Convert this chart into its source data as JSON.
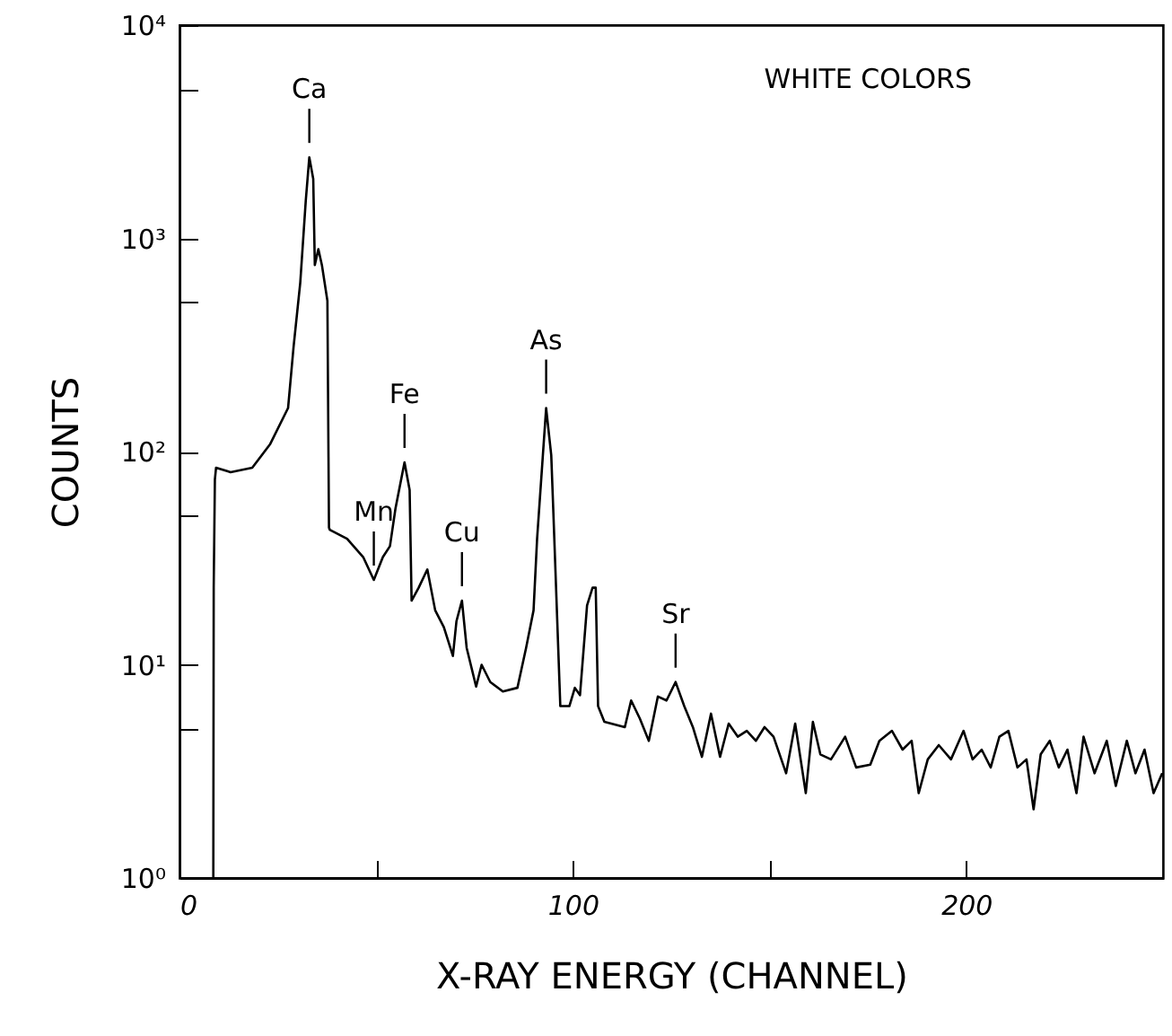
{
  "chart_data": {
    "type": "line",
    "xlabel": "X-RAY ENERGY (CHANNEL)",
    "ylabel": "COUNTS",
    "log": "y",
    "grid": false,
    "xlim": [
      0,
      250
    ],
    "xticks": [
      0,
      {
        "value": 50,
        "label": null
      },
      100,
      {
        "value": 150,
        "label": null
      },
      200
    ],
    "ylim": [
      1,
      10000
    ],
    "yticks": [
      {
        "value": 1,
        "label": "10⁰"
      },
      {
        "value": 5,
        "label": null
      },
      {
        "value": 10,
        "label": "10¹"
      },
      {
        "value": 50,
        "label": null
      },
      {
        "value": 100,
        "label": "10²"
      },
      {
        "value": 500,
        "label": null
      },
      {
        "value": 1000,
        "label": "10³"
      },
      {
        "value": 5000,
        "label": null
      },
      {
        "value": 10000,
        "label": "10⁴"
      }
    ],
    "annotations": [
      "WHITE COLORS",
      {
        "text": "Ca",
        "x": 33,
        "y": 2400
      },
      {
        "text": "Mn",
        "x": 49.4,
        "y": 25
      },
      {
        "text": "Fe",
        "x": 57.2,
        "y": 89
      },
      {
        "text": "Cu",
        "x": 71.8,
        "y": 20
      },
      {
        "text": "As",
        "x": 93.2,
        "y": 160
      },
      {
        "text": "Sr",
        "x": 126.1,
        "y": 8.3
      }
    ],
    "series": [
      {
        "color": "#000000",
        "x": [
          8.6,
          8.7,
          9.0,
          9.3,
          13,
          18.5,
          23,
          27.6,
          29,
          30.7,
          32.1,
          33,
          34,
          34.4,
          35.3,
          36.2,
          37.6,
          38,
          38.2,
          42.6,
          46.7,
          49.4,
          51.7,
          53.5,
          54.9,
          57.2,
          58.5,
          59,
          60.8,
          63,
          65,
          67.2,
          69.5,
          70.4,
          71.8,
          73,
          75.4,
          76.8,
          79,
          82.2,
          85.9,
          88.1,
          90,
          90.9,
          93.2,
          94.5,
          95,
          96.8,
          99.1,
          100.5,
          101.8,
          103.6,
          105,
          105.8,
          106.4,
          108,
          113.2,
          114.8,
          117,
          119.3,
          121.6,
          123.8,
          126.1,
          128.3,
          130.5,
          132.8,
          135.1,
          137.4,
          139.6,
          141.9,
          144.2,
          146.5,
          148.7,
          151,
          154.2,
          156.5,
          159.2,
          161,
          162.9,
          165.6,
          169.2,
          172,
          175.6,
          177.9,
          181.1,
          183.8,
          186.1,
          187.9,
          190.2,
          193,
          196.1,
          199.3,
          201.6,
          203.9,
          206.2,
          208.4,
          210.7,
          213,
          215.3,
          217.1,
          218.9,
          221.2,
          223.5,
          225.7,
          228,
          229.8,
          232.6,
          235.7,
          238,
          240.8,
          243,
          245.3,
          247.6,
          249.8
        ],
        "values": [
          1,
          23,
          74,
          84,
          80,
          84,
          108,
          160,
          310,
          620,
          1500,
          2400,
          1900,
          750,
          890,
          750,
          510,
          44,
          43,
          39,
          32,
          25,
          32,
          36,
          54,
          89,
          66,
          20,
          23,
          28,
          18,
          15,
          11,
          16,
          20,
          12,
          7.9,
          10,
          8.3,
          7.5,
          7.8,
          12,
          18,
          39,
          160,
          96,
          54,
          6.4,
          6.4,
          7.8,
          7.2,
          19,
          23,
          23,
          6.4,
          5.4,
          5.1,
          6.8,
          5.6,
          4.4,
          7.1,
          6.8,
          8.3,
          6.4,
          5.1,
          3.7,
          5.9,
          3.7,
          5.3,
          4.6,
          4.9,
          4.4,
          5.1,
          4.6,
          3.1,
          5.3,
          2.5,
          5.4,
          3.8,
          3.6,
          4.6,
          3.3,
          3.4,
          4.4,
          4.9,
          4,
          4.4,
          2.5,
          3.6,
          4.2,
          3.6,
          4.9,
          3.6,
          4,
          3.3,
          4.6,
          4.9,
          3.3,
          3.6,
          2.1,
          3.8,
          4.4,
          3.3,
          4,
          2.5,
          4.6,
          3.1,
          4.4,
          2.7,
          4.4,
          3.1,
          4,
          2.5,
          3.1
        ]
      }
    ]
  }
}
